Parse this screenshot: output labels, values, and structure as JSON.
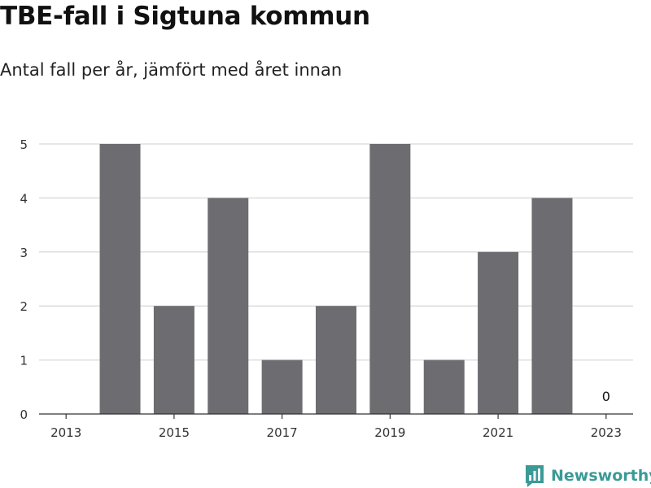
{
  "title": "TBE-fall i Sigtuna kommun",
  "subtitle": "Antal fall per år, jämfört med året innan",
  "brand": "Newsworthy",
  "colors": {
    "bar": "#6d6c71",
    "grid": "#dddddd",
    "brand": "#3a9a96"
  },
  "chart_data": {
    "type": "bar",
    "categories": [
      "2013",
      "2014",
      "2015",
      "2016",
      "2017",
      "2018",
      "2019",
      "2020",
      "2021",
      "2022",
      "2023"
    ],
    "values": [
      0,
      5,
      2,
      4,
      1,
      2,
      5,
      1,
      3,
      4,
      0
    ],
    "x_tick_labels": [
      "2013",
      "2015",
      "2017",
      "2019",
      "2021",
      "2023"
    ],
    "y_ticks": [
      0,
      1,
      2,
      3,
      4,
      5
    ],
    "ylim": [
      0,
      5
    ],
    "value_labels": [
      {
        "category": "2023",
        "text": "0"
      }
    ],
    "title": "TBE-fall i Sigtuna kommun",
    "subtitle": "Antal fall per år, jämfört med året innan",
    "xlabel": "",
    "ylabel": "",
    "grid": true
  }
}
